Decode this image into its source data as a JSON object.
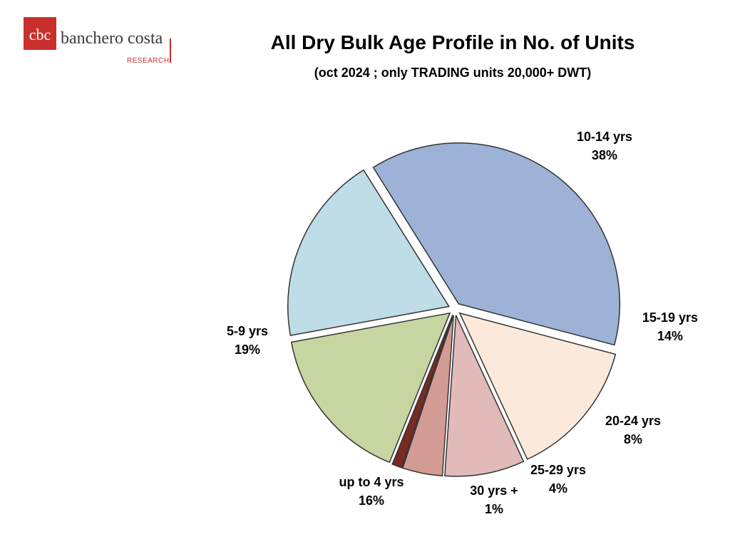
{
  "logo": {
    "brand": "banchero costa",
    "sub": "RESEARCH",
    "colors": {
      "mark": "#c9302c"
    }
  },
  "chart_data": {
    "type": "pie",
    "title": "All Dry Bulk Age Profile in No. of Units",
    "subtitle": "(oct 2024 ; only TRADING units 20,000+ DWT)",
    "slices": [
      {
        "label": "10-14 yrs",
        "pct_label": "38%",
        "value": 38,
        "color": "#9db2d6"
      },
      {
        "label": "15-19 yrs",
        "pct_label": "14%",
        "value": 14,
        "color": "#fbe9dc"
      },
      {
        "label": "20-24 yrs",
        "pct_label": "8%",
        "value": 8,
        "color": "#e2baba"
      },
      {
        "label": "25-29 yrs",
        "pct_label": "4%",
        "value": 4,
        "color": "#d49a94"
      },
      {
        "label": "30 yrs +",
        "pct_label": "1%",
        "value": 1,
        "color": "#7a2a22"
      },
      {
        "label": "up to 4 yrs",
        "pct_label": "16%",
        "value": 16,
        "color": "#c7d6a0"
      },
      {
        "label": "5-9 yrs",
        "pct_label": "19%",
        "value": 19,
        "color": "#bfdde6"
      }
    ]
  }
}
